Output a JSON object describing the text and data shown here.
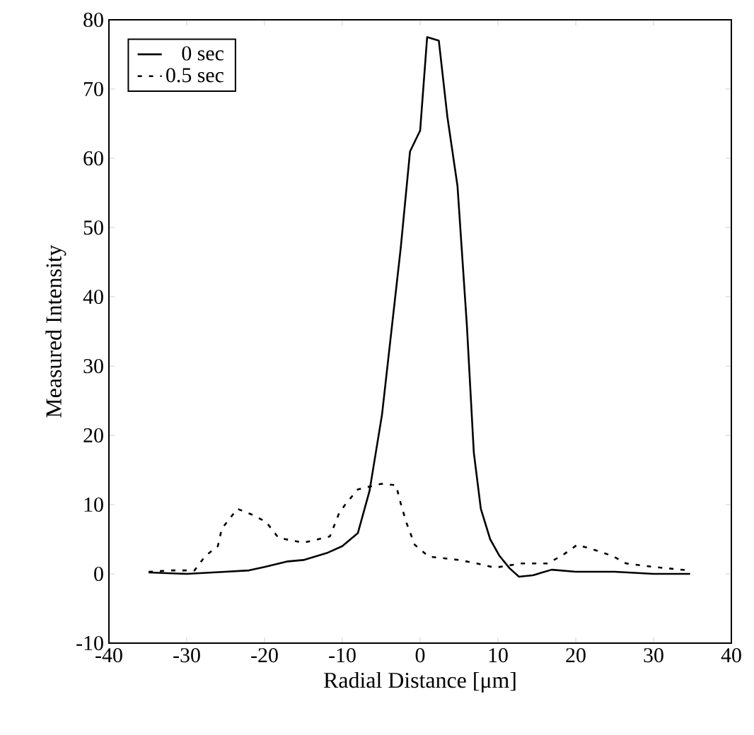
{
  "chart_data": {
    "type": "line",
    "xlabel": "Radial Distance [μm]",
    "ylabel": "Measured Intensity",
    "xlim": [
      -40,
      40
    ],
    "ylim": [
      -10,
      80
    ],
    "xticks": [
      -40,
      -30,
      -20,
      -10,
      0,
      10,
      20,
      30,
      40
    ],
    "yticks": [
      -10,
      0,
      10,
      20,
      30,
      40,
      50,
      60,
      70,
      80
    ],
    "grid": false,
    "legend": "top left",
    "marker": "none",
    "series": [
      {
        "name": "0 sec",
        "color": "#000000",
        "line_style": "solid",
        "x": [
          -34.9,
          -30,
          -25,
          -22,
          -20,
          -17,
          -15,
          -12,
          -10,
          -8,
          -6.5,
          -4.9,
          -4,
          -2.5,
          -1.3,
          0,
          0.9,
          2.4,
          3.5,
          4.8,
          6,
          6.9,
          7.8,
          9,
          10.2,
          11.5,
          12.7,
          14.5,
          16.9,
          20,
          25,
          30,
          34.7
        ],
        "values": [
          0.2,
          0,
          0.3,
          0.5,
          1,
          1.8,
          2,
          3,
          4,
          5.9,
          12,
          23,
          32,
          47,
          61,
          64,
          77.5,
          77,
          66,
          56,
          36,
          17.5,
          9.4,
          5,
          2.6,
          0.8,
          -0.4,
          -0.2,
          0.6,
          0.3,
          0.3,
          0,
          0
        ]
      },
      {
        "name": "0.5 sec",
        "color": "#000000",
        "line_style": "dashed",
        "x": [
          -34.9,
          -32,
          -29,
          -27.6,
          -26,
          -25.5,
          -23.5,
          -21.5,
          -19.8,
          -18.2,
          -15,
          -11.6,
          -10.4,
          -9.5,
          -8,
          -5,
          -3.1,
          -2.5,
          -1.8,
          -0.7,
          1.1,
          5,
          7.3,
          9.6,
          13,
          16.3,
          18.2,
          20.2,
          22.3,
          24.7,
          26.5,
          30,
          34.5
        ],
        "values": [
          0.3,
          0.5,
          0.5,
          2.6,
          4,
          6.5,
          9.4,
          8.5,
          7.5,
          5.2,
          4.5,
          5.4,
          8.8,
          10.2,
          12.2,
          13,
          12.8,
          10.2,
          7.5,
          4.2,
          2.5,
          2,
          1.5,
          0.9,
          1.5,
          1.5,
          2.6,
          4.2,
          3.5,
          2.6,
          1.5,
          1,
          0.5
        ]
      }
    ]
  }
}
